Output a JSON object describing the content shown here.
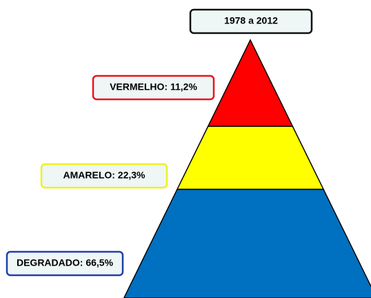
{
  "chart_data": {
    "type": "pyramid",
    "title": "1978 a 2012",
    "categories": [
      "VERMELHO",
      "AMARELO",
      "DEGRADADO"
    ],
    "values": [
      11.2,
      22.3,
      66.5
    ],
    "value_labels": [
      "VERMELHO: 11,2%",
      "AMARELO: 22,3%",
      "DEGRADADO: 66,5%"
    ],
    "colors": [
      "#ff0000",
      "#ffff00",
      "#0070c0"
    ],
    "label_border_colors": [
      "#e8141e",
      "#f0f020",
      "#1f3fa8"
    ]
  }
}
